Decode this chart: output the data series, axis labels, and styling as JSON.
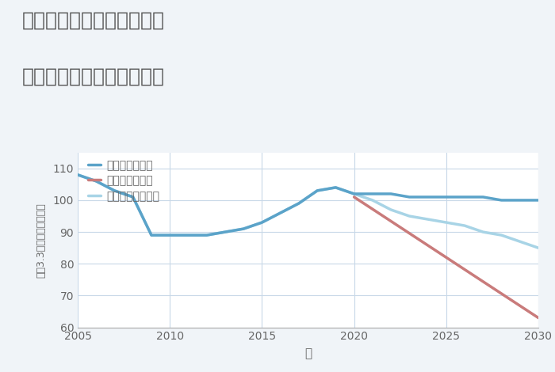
{
  "title_line1": "奈良県磯城郡三宅町屏風の",
  "title_line2": "中古マンションの価格推移",
  "xlabel": "年",
  "ylabel": "平（3.3㎡）単価（万円）",
  "xlim": [
    2005,
    2030
  ],
  "ylim": [
    60,
    115
  ],
  "yticks": [
    60,
    70,
    80,
    90,
    100,
    110
  ],
  "xticks": [
    2005,
    2010,
    2015,
    2020,
    2025,
    2030
  ],
  "good_scenario": {
    "x": [
      2005,
      2006,
      2007,
      2008,
      2009,
      2010,
      2011,
      2012,
      2013,
      2014,
      2015,
      2016,
      2017,
      2018,
      2019,
      2020,
      2021,
      2022,
      2023,
      2024,
      2025,
      2026,
      2027,
      2028,
      2029,
      2030
    ],
    "y": [
      108,
      106,
      103,
      101,
      89,
      89,
      89,
      89,
      90,
      91,
      93,
      96,
      99,
      103,
      104,
      102,
      102,
      102,
      101,
      101,
      101,
      101,
      101,
      100,
      100,
      100
    ],
    "color": "#5ba3c9",
    "label": "グッドシナリオ",
    "linewidth": 2.5
  },
  "bad_scenario": {
    "x": [
      2020,
      2025,
      2030
    ],
    "y": [
      101,
      82,
      63
    ],
    "color": "#c97b7b",
    "label": "バッドシナリオ",
    "linewidth": 2.5
  },
  "normal_scenario": {
    "x": [
      2005,
      2006,
      2007,
      2008,
      2009,
      2010,
      2011,
      2012,
      2013,
      2014,
      2015,
      2016,
      2017,
      2018,
      2019,
      2020,
      2021,
      2022,
      2023,
      2024,
      2025,
      2026,
      2027,
      2028,
      2029,
      2030
    ],
    "y": [
      108,
      106,
      103,
      101,
      89,
      89,
      89,
      89,
      90,
      91,
      93,
      96,
      99,
      103,
      104,
      102,
      100,
      97,
      95,
      94,
      93,
      92,
      90,
      89,
      87,
      85
    ],
    "color": "#a8d4e6",
    "label": "ノーマルシナリオ",
    "linewidth": 2.5
  },
  "background_color": "#f0f4f8",
  "plot_bg_color": "#ffffff",
  "grid_color": "#c8d8e8",
  "title_color": "#555555",
  "tick_color": "#666666",
  "title_fontsize": 18,
  "legend_fontsize": 10,
  "axis_label_fontsize": 11,
  "tick_fontsize": 10
}
